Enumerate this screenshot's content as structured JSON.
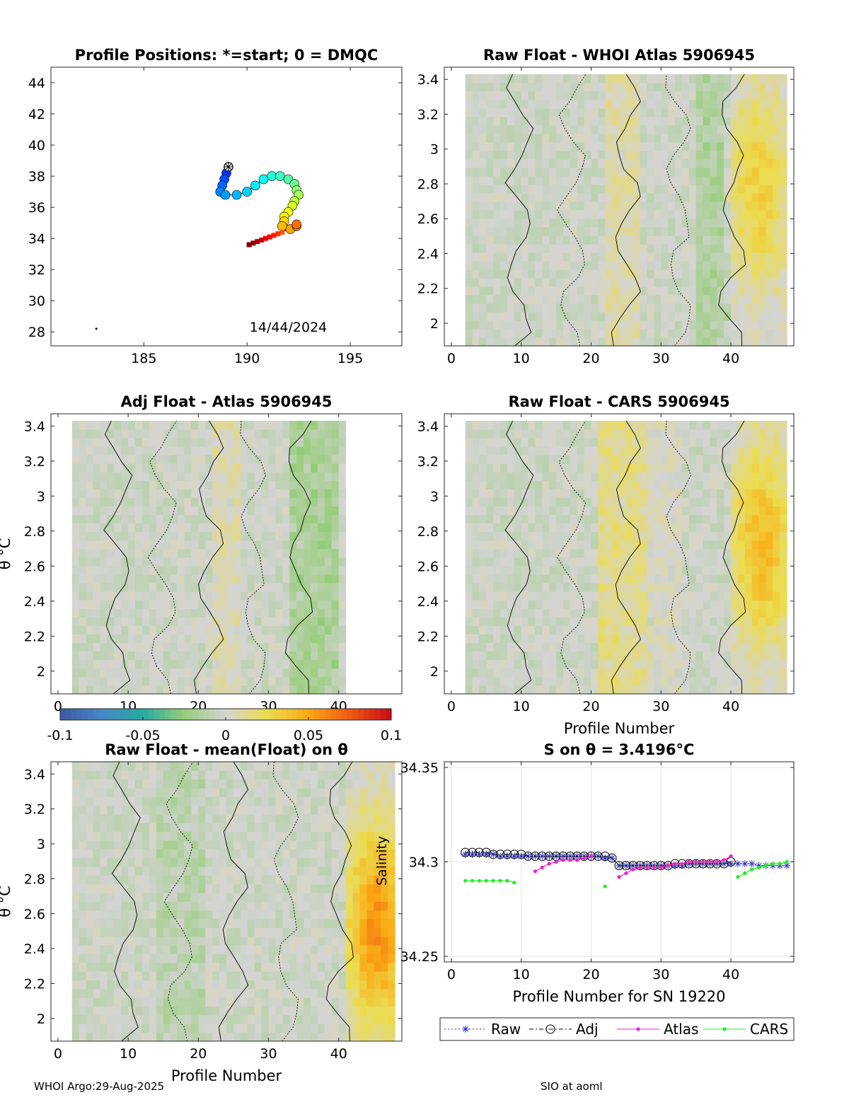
{
  "footer": {
    "left": "WHOI Argo:29-Aug-2025",
    "right": "SIO at aoml"
  },
  "colorbar": {
    "min": -0.1,
    "max": 0.1,
    "ticks": [
      -0.1,
      -0.05,
      0,
      0.05,
      0.1
    ],
    "tick_labels": [
      "-0.1",
      "-0.05",
      "0",
      "0.05",
      "0.1"
    ],
    "label": "Salinity"
  },
  "chart_data": [
    {
      "id": "positions",
      "type": "scatter",
      "title": "Profile Positions: *=start; 0 = DMQC",
      "xlim": [
        180.5,
        197.5
      ],
      "ylim": [
        27.1,
        45
      ],
      "xticks": [
        185,
        190,
        195
      ],
      "yticks": [
        28,
        30,
        32,
        34,
        36,
        38,
        40,
        42,
        44
      ],
      "annotation": "14/44/2024",
      "start_marker": {
        "lon": 189.1,
        "lat": 38.6
      },
      "stray_point": {
        "lon": 182.7,
        "lat": 28.2
      },
      "track": [
        {
          "lon": 189.1,
          "lat": 38.6
        },
        {
          "lon": 189.0,
          "lat": 38.2
        },
        {
          "lon": 188.9,
          "lat": 37.8
        },
        {
          "lon": 188.8,
          "lat": 37.4
        },
        {
          "lon": 188.7,
          "lat": 37.0
        },
        {
          "lon": 188.95,
          "lat": 36.8
        },
        {
          "lon": 189.5,
          "lat": 36.8
        },
        {
          "lon": 190.0,
          "lat": 37.0
        },
        {
          "lon": 190.4,
          "lat": 37.4
        },
        {
          "lon": 190.8,
          "lat": 37.8
        },
        {
          "lon": 191.2,
          "lat": 38.0
        },
        {
          "lon": 191.6,
          "lat": 38.0
        },
        {
          "lon": 192.0,
          "lat": 37.8
        },
        {
          "lon": 192.3,
          "lat": 37.5
        },
        {
          "lon": 192.4,
          "lat": 37.1
        },
        {
          "lon": 192.5,
          "lat": 36.8
        },
        {
          "lon": 192.3,
          "lat": 36.4
        },
        {
          "lon": 192.2,
          "lat": 36.1
        },
        {
          "lon": 192.0,
          "lat": 35.7
        },
        {
          "lon": 191.8,
          "lat": 35.4
        },
        {
          "lon": 191.8,
          "lat": 35.1
        },
        {
          "lon": 191.7,
          "lat": 34.8
        },
        {
          "lon": 192.1,
          "lat": 34.6
        },
        {
          "lon": 192.4,
          "lat": 34.8
        },
        {
          "lon": 192.4,
          "lat": 34.9
        },
        {
          "lon": 191.7,
          "lat": 34.4
        },
        {
          "lon": 191.5,
          "lat": 34.3
        },
        {
          "lon": 191.3,
          "lat": 34.2
        },
        {
          "lon": 191.1,
          "lat": 34.1
        },
        {
          "lon": 190.9,
          "lat": 34.0
        },
        {
          "lon": 190.7,
          "lat": 33.9
        },
        {
          "lon": 190.5,
          "lat": 33.8
        },
        {
          "lon": 190.3,
          "lat": 33.7
        },
        {
          "lon": 190.1,
          "lat": 33.6
        }
      ]
    },
    {
      "id": "raw_whoi",
      "type": "heatmap",
      "title": "Raw Float - WHOI Atlas  5906945",
      "xlim": [
        -1,
        49
      ],
      "ylim": [
        1.87,
        3.47
      ],
      "xticks": [
        0,
        10,
        20,
        30,
        40
      ],
      "yticks": [
        2,
        2.2,
        2.4,
        2.6,
        2.8,
        3,
        3.2,
        3.4
      ],
      "xlabel": "",
      "ylabel": "",
      "x_extent": [
        2,
        48
      ],
      "y_extent": [
        1.87,
        3.43
      ],
      "hotspot": {
        "x": 43.5,
        "theta": 2.75,
        "value": 0.035
      },
      "warm_bands": [
        [
          22,
          26,
          0.012
        ],
        [
          35,
          39,
          -0.012
        ]
      ]
    },
    {
      "id": "adj_atlas",
      "type": "heatmap",
      "title": "Adj Float - Atlas  5906945",
      "xlim": [
        -1,
        49
      ],
      "ylim": [
        1.87,
        3.47
      ],
      "xticks": [
        0,
        10,
        20,
        30,
        40
      ],
      "yticks": [
        2,
        2.2,
        2.4,
        2.6,
        2.8,
        3,
        3.2,
        3.4
      ],
      "xlabel": "",
      "ylabel": "θ °C",
      "x_extent": [
        2,
        41
      ],
      "y_extent": [
        1.87,
        3.43
      ],
      "hotspot": null,
      "warm_bands": [
        [
          22,
          25,
          0.01
        ],
        [
          33,
          39,
          -0.015
        ]
      ]
    },
    {
      "id": "raw_cars",
      "type": "heatmap",
      "title": "Raw Float - CARS  5906945",
      "xlim": [
        -1,
        49
      ],
      "ylim": [
        1.87,
        3.47
      ],
      "xticks": [
        0,
        10,
        20,
        30,
        40
      ],
      "yticks": [
        2,
        2.2,
        2.4,
        2.6,
        2.8,
        3,
        3.2,
        3.4
      ],
      "xlabel": "Profile Number",
      "ylabel": "",
      "x_extent": [
        2,
        48
      ],
      "y_extent": [
        1.87,
        3.43
      ],
      "hotspot": {
        "x": 44,
        "theta": 2.7,
        "value": 0.045
      },
      "warm_bands": [
        [
          21,
          27,
          0.018
        ],
        [
          28,
          32,
          0.006
        ]
      ]
    },
    {
      "id": "raw_mean",
      "type": "heatmap",
      "title": "Raw Float - mean(Float) on θ",
      "xlim": [
        -1,
        49
      ],
      "ylim": [
        1.87,
        3.47
      ],
      "xticks": [
        0,
        10,
        20,
        30,
        40
      ],
      "yticks": [
        2,
        2.2,
        2.4,
        2.6,
        2.8,
        3,
        3.2,
        3.4
      ],
      "xlabel": "Profile Number",
      "ylabel": "θ °C",
      "x_extent": [
        2,
        48
      ],
      "y_extent": [
        1.87,
        3.47
      ],
      "hotspot": {
        "x": 45,
        "theta": 2.5,
        "value": 0.06
      },
      "warm_bands": [
        [
          14,
          20,
          -0.008
        ]
      ]
    },
    {
      "id": "s_on_theta",
      "type": "line",
      "title": "S on θ = 3.4196°C",
      "xlim": [
        -1,
        49
      ],
      "ylim": [
        34.247,
        34.353
      ],
      "xticks": [
        0,
        10,
        20,
        30,
        40
      ],
      "yticks": [
        34.25,
        34.3,
        34.35
      ],
      "ytick_labels": [
        "34.25",
        "34.3",
        "34.35"
      ],
      "xlabel": "Profile Number for SN 19220",
      "legend": [
        "Raw",
        "Adj",
        "Atlas",
        "CARS"
      ],
      "legend_position": "below",
      "colors": {
        "Raw": "#2a2acc",
        "Adj": "#000000",
        "Atlas": "#ee22cc",
        "CARS": "#22ee22"
      },
      "series": [
        {
          "name": "Raw",
          "x": [
            2,
            3,
            4,
            5,
            6,
            7,
            8,
            9,
            10,
            11,
            12,
            13,
            14,
            15,
            16,
            17,
            18,
            19,
            20,
            21,
            22,
            23,
            24,
            25,
            26,
            27,
            28,
            29,
            30,
            31,
            32,
            33,
            34,
            35,
            36,
            37,
            38,
            39,
            40,
            41,
            42,
            43,
            44,
            45,
            46,
            47,
            48
          ],
          "y": [
            34.304,
            34.304,
            34.304,
            34.304,
            34.304,
            34.303,
            34.303,
            34.303,
            34.303,
            34.303,
            34.303,
            34.303,
            34.303,
            34.303,
            34.303,
            34.303,
            34.303,
            34.303,
            34.303,
            34.303,
            34.302,
            34.302,
            34.298,
            34.298,
            34.298,
            34.298,
            34.298,
            34.298,
            34.298,
            34.298,
            34.298,
            34.298,
            34.299,
            34.299,
            34.299,
            34.299,
            34.299,
            34.299,
            34.299,
            34.299,
            34.299,
            34.299,
            34.298,
            34.298,
            34.298,
            34.298,
            34.298
          ]
        },
        {
          "name": "Adj",
          "x": [
            2,
            3,
            4,
            5,
            6,
            7,
            8,
            9,
            10,
            11,
            12,
            13,
            14,
            15,
            16,
            17,
            18,
            19,
            20,
            21,
            22,
            23,
            24,
            25,
            26,
            27,
            28,
            29,
            30,
            31,
            32,
            33,
            34,
            35,
            36,
            37,
            38,
            39,
            40
          ],
          "y": [
            34.305,
            34.305,
            34.305,
            34.305,
            34.304,
            34.304,
            34.304,
            34.304,
            34.304,
            34.303,
            34.303,
            34.303,
            34.303,
            34.303,
            34.303,
            34.303,
            34.303,
            34.303,
            34.303,
            34.303,
            34.303,
            34.302,
            34.298,
            34.298,
            34.298,
            34.298,
            34.298,
            34.298,
            34.298,
            34.298,
            34.299,
            34.299,
            34.299,
            34.299,
            34.299,
            34.299,
            34.299,
            34.299,
            34.3
          ]
        },
        {
          "name": "Atlas",
          "x": [
            12,
            13,
            14,
            15,
            16,
            17,
            18,
            19,
            20,
            24,
            25,
            26,
            27,
            28,
            29,
            30,
            31,
            32,
            33,
            34,
            35,
            36,
            37,
            38,
            39,
            40
          ],
          "y": [
            34.295,
            34.297,
            34.299,
            34.3,
            34.301,
            34.301,
            34.301,
            34.302,
            34.303,
            34.292,
            34.294,
            34.296,
            34.297,
            34.297,
            34.297,
            34.297,
            34.298,
            34.299,
            34.299,
            34.3,
            34.3,
            34.3,
            34.3,
            34.3,
            34.301,
            34.303
          ]
        },
        {
          "name": "CARS",
          "x": [
            2,
            3,
            4,
            5,
            6,
            7,
            8,
            9,
            22,
            41,
            42,
            43,
            44,
            45,
            46,
            47,
            48
          ],
          "y": [
            34.29,
            34.29,
            34.29,
            34.29,
            34.29,
            34.29,
            34.29,
            34.289,
            34.287,
            34.292,
            34.294,
            34.296,
            34.297,
            34.298,
            34.299,
            34.299,
            34.3
          ]
        }
      ]
    }
  ]
}
